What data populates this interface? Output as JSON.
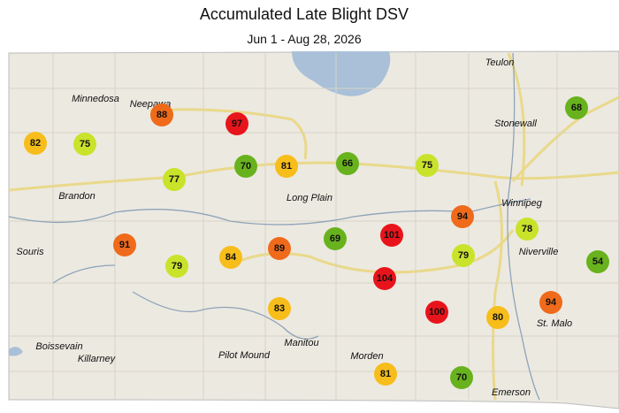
{
  "title": "Accumulated Late Blight DSV",
  "subtitle": "Jun 1 - Aug 28, 2026",
  "places": [
    "Teulon",
    "Minnedosa",
    "Neepawa",
    "Stonewall",
    "Winnipeg",
    "Brandon",
    "Long Plain",
    "Souris",
    "Niverville",
    "St. Malo",
    "Boissevain",
    "Killarney",
    "Pilot Mound",
    "Manitou",
    "Morden",
    "Emerson"
  ],
  "stations": [
    {
      "value": 88,
      "color": "#ef6a1a"
    },
    {
      "value": 97,
      "color": "#e8141c"
    },
    {
      "value": 82,
      "color": "#f7bd1a"
    },
    {
      "value": 75,
      "color": "#c8e32a"
    },
    {
      "value": 70,
      "color": "#68b21d"
    },
    {
      "value": 81,
      "color": "#f7bd1a"
    },
    {
      "value": 66,
      "color": "#68b21d"
    },
    {
      "value": 75,
      "color": "#c8e32a"
    },
    {
      "value": 68,
      "color": "#68b21d"
    },
    {
      "value": 77,
      "color": "#c8e32a"
    },
    {
      "value": 94,
      "color": "#ef6a1a"
    },
    {
      "value": 78,
      "color": "#c8e32a"
    },
    {
      "value": 101,
      "color": "#e8141c"
    },
    {
      "value": 69,
      "color": "#68b21d"
    },
    {
      "value": 89,
      "color": "#ef6a1a"
    },
    {
      "value": 84,
      "color": "#f7bd1a"
    },
    {
      "value": 91,
      "color": "#ef6a1a"
    },
    {
      "value": 79,
      "color": "#c8e32a"
    },
    {
      "value": 79,
      "color": "#c8e32a"
    },
    {
      "value": 54,
      "color": "#68b21d"
    },
    {
      "value": 104,
      "color": "#e8141c"
    },
    {
      "value": 94,
      "color": "#ef6a1a"
    },
    {
      "value": 100,
      "color": "#e8141c"
    },
    {
      "value": 80,
      "color": "#f7bd1a"
    },
    {
      "value": 83,
      "color": "#f7bd1a"
    },
    {
      "value": 81,
      "color": "#f7bd1a"
    },
    {
      "value": 70,
      "color": "#68b21d"
    }
  ]
}
